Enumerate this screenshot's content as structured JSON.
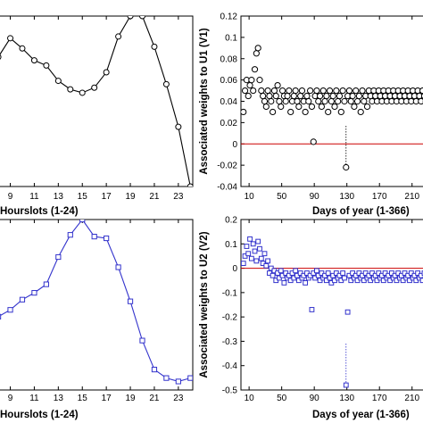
{
  "chart_data": [
    {
      "type": "line",
      "panel": "top-left",
      "xlabel": "Hourslots (1-24)",
      "ylabel": "",
      "xlim": [
        7.4,
        24.2
      ],
      "ylim": [
        0,
        1
      ],
      "xticks": [
        9,
        11,
        13,
        15,
        17,
        19,
        21,
        23
      ],
      "color": "#000000",
      "marker": "circle",
      "series": [
        {
          "x": [
            8,
            9,
            10,
            11,
            12,
            13,
            14,
            15,
            16,
            17,
            18,
            19,
            20,
            21,
            22,
            23,
            24
          ],
          "y": [
            0.76,
            0.87,
            0.81,
            0.74,
            0.71,
            0.62,
            0.57,
            0.55,
            0.58,
            0.67,
            0.88,
            1.0,
            1.0,
            0.82,
            0.6,
            0.35,
            0.0
          ]
        }
      ]
    },
    {
      "type": "scatter",
      "panel": "top-right",
      "xlabel": "Days of year (1-366)",
      "ylabel": "Associated weights to U1 (V1)",
      "xlim": [
        0,
        230
      ],
      "ylim": [
        -0.04,
        0.12
      ],
      "yticks": [
        -0.04,
        -0.02,
        0,
        0.02,
        0.04,
        0.06,
        0.08,
        0.1,
        0.12
      ],
      "ytick_labels": [
        "-0.04",
        "-0.02",
        "0",
        "0.02",
        "0.04",
        "0.06",
        "0.08",
        "0.1",
        "0.12"
      ],
      "xticks": [
        10,
        50,
        90,
        130,
        170,
        210
      ],
      "xtick_labels": [
        "10",
        "50",
        "90",
        "130",
        "170",
        "210"
      ],
      "color": "#000000",
      "marker": "circle",
      "reference_line": {
        "y": 0,
        "color": "#cc0000"
      },
      "series": [
        {
          "x": [
            3,
            5,
            7,
            9,
            11,
            13,
            15,
            17,
            19,
            21,
            23,
            25,
            27,
            29,
            31,
            33,
            35,
            37,
            39,
            41,
            43,
            45,
            47,
            49,
            51,
            53,
            55,
            57,
            59,
            61,
            63,
            65,
            67,
            69,
            71,
            73,
            75,
            77,
            79,
            81,
            83,
            85,
            87,
            89,
            91,
            93,
            95,
            97,
            99,
            101,
            103,
            105,
            107,
            109,
            111,
            113,
            115,
            117,
            119,
            121,
            123,
            125,
            127,
            129,
            131,
            133,
            135,
            137,
            139,
            141,
            143,
            145,
            147,
            149,
            151,
            153,
            155,
            157,
            159,
            161,
            163,
            165,
            167,
            169,
            171,
            173,
            175,
            177,
            179,
            181,
            183,
            185,
            187,
            189,
            191,
            193,
            195,
            197,
            199,
            201,
            203,
            205,
            207,
            209,
            211,
            213,
            215,
            217,
            219,
            221,
            223,
            225,
            227,
            229
          ],
          "y": [
            0.03,
            0.05,
            0.06,
            0.045,
            0.055,
            0.06,
            0.05,
            0.07,
            0.085,
            0.09,
            0.06,
            0.05,
            0.045,
            0.04,
            0.035,
            0.05,
            0.045,
            0.04,
            0.03,
            0.05,
            0.045,
            0.055,
            0.04,
            0.035,
            0.05,
            0.045,
            0.04,
            0.045,
            0.05,
            0.03,
            0.04,
            0.045,
            0.05,
            0.04,
            0.035,
            0.045,
            0.05,
            0.04,
            0.03,
            0.045,
            0.04,
            0.05,
            0.035,
            0.002,
            0.045,
            0.05,
            0.04,
            0.045,
            0.035,
            0.05,
            0.04,
            0.045,
            0.03,
            0.05,
            0.04,
            0.045,
            0.035,
            0.05,
            0.04,
            0.045,
            0.03,
            0.05,
            0.04,
            -0.022,
            0.045,
            0.05,
            0.04,
            0.045,
            0.035,
            0.05,
            0.04,
            0.045,
            0.03,
            0.05,
            0.04,
            0.045,
            0.035,
            0.05,
            0.045,
            0.04,
            0.05,
            0.045,
            0.04,
            0.05,
            0.045,
            0.04,
            0.05,
            0.045,
            0.04,
            0.05,
            0.045,
            0.04,
            0.05,
            0.045,
            0.04,
            0.05,
            0.045,
            0.04,
            0.05,
            0.045,
            0.04,
            0.05,
            0.045,
            0.04,
            0.05,
            0.045,
            0.04,
            0.05,
            0.045,
            0.04,
            0.05,
            0.045,
            0.04,
            0.05
          ]
        }
      ]
    },
    {
      "type": "line",
      "panel": "bottom-left",
      "xlabel": "Hourslots (1-24)",
      "ylabel": "",
      "xlim": [
        7.4,
        24.2
      ],
      "ylim": [
        0,
        1
      ],
      "xticks": [
        9,
        11,
        13,
        15,
        17,
        19,
        21,
        23
      ],
      "color": "#3333cc",
      "marker": "square",
      "series": [
        {
          "x": [
            8,
            9,
            10,
            11,
            12,
            13,
            14,
            15,
            16,
            17,
            18,
            19,
            20,
            21,
            22,
            23,
            24
          ],
          "y": [
            0.43,
            0.47,
            0.53,
            0.57,
            0.62,
            0.78,
            0.91,
            1.0,
            0.9,
            0.89,
            0.72,
            0.52,
            0.29,
            0.12,
            0.07,
            0.05,
            0.07
          ]
        }
      ]
    },
    {
      "type": "scatter",
      "panel": "bottom-right",
      "xlabel": "Days of year (1-366)",
      "ylabel": "Associated weights to U2 (V2)",
      "xlim": [
        0,
        230
      ],
      "ylim": [
        -0.5,
        0.2
      ],
      "yticks": [
        -0.5,
        -0.4,
        -0.3,
        -0.2,
        -0.1,
        0,
        0.1,
        0.2
      ],
      "ytick_labels": [
        "-0.5",
        "-0.4",
        "-0.3",
        "-0.2",
        "-0.1",
        "0",
        "0.1",
        "0.2"
      ],
      "xticks": [
        10,
        50,
        90,
        130,
        170,
        210
      ],
      "xtick_labels": [
        "10",
        "50",
        "90",
        "130",
        "170",
        "210"
      ],
      "color": "#3333cc",
      "marker": "square",
      "reference_line": {
        "y": 0,
        "color": "#cc0000"
      },
      "series": [
        {
          "x": [
            3,
            5,
            7,
            9,
            11,
            13,
            15,
            17,
            19,
            21,
            23,
            25,
            27,
            29,
            31,
            33,
            35,
            37,
            39,
            41,
            43,
            45,
            47,
            49,
            51,
            53,
            55,
            57,
            59,
            61,
            63,
            65,
            67,
            69,
            71,
            73,
            75,
            77,
            79,
            81,
            83,
            85,
            87,
            89,
            91,
            93,
            95,
            97,
            99,
            101,
            103,
            105,
            107,
            109,
            111,
            113,
            115,
            117,
            119,
            121,
            123,
            125,
            127,
            129,
            131,
            133,
            135,
            137,
            139,
            141,
            143,
            145,
            147,
            149,
            151,
            153,
            155,
            157,
            159,
            161,
            163,
            165,
            167,
            169,
            171,
            173,
            175,
            177,
            179,
            181,
            183,
            185,
            187,
            189,
            191,
            193,
            195,
            197,
            199,
            201,
            203,
            205,
            207,
            209,
            211,
            213,
            215,
            217,
            219,
            221,
            223,
            225,
            227,
            229
          ],
          "y": [
            0.02,
            0.05,
            0.09,
            0.06,
            0.12,
            0.04,
            0.1,
            0.07,
            0.03,
            0.11,
            0.08,
            0.04,
            0.02,
            0.06,
            0.01,
            0.03,
            -0.02,
            0.0,
            -0.03,
            -0.01,
            -0.05,
            -0.02,
            -0.04,
            -0.01,
            -0.03,
            -0.06,
            -0.02,
            -0.04,
            -0.03,
            -0.05,
            -0.02,
            -0.04,
            -0.01,
            -0.03,
            -0.05,
            -0.02,
            -0.04,
            -0.03,
            -0.06,
            -0.02,
            -0.04,
            -0.03,
            -0.17,
            -0.02,
            -0.04,
            -0.01,
            -0.03,
            -0.05,
            -0.02,
            -0.04,
            -0.03,
            -0.05,
            -0.02,
            -0.04,
            -0.06,
            -0.03,
            -0.05,
            -0.02,
            -0.04,
            -0.03,
            -0.05,
            -0.02,
            -0.04,
            -0.48,
            -0.18,
            -0.03,
            -0.05,
            -0.02,
            -0.04,
            -0.03,
            -0.05,
            -0.02,
            -0.04,
            -0.03,
            -0.05,
            -0.02,
            -0.04,
            -0.03,
            -0.05,
            -0.02,
            -0.04,
            -0.03,
            -0.05,
            -0.02,
            -0.04,
            -0.03,
            -0.05,
            -0.02,
            -0.04,
            -0.03,
            -0.05,
            -0.02,
            -0.04,
            -0.03,
            -0.05,
            -0.02,
            -0.04,
            -0.03,
            -0.05,
            -0.02,
            -0.04,
            -0.03,
            -0.05,
            -0.02,
            -0.04,
            -0.03,
            -0.05,
            -0.02,
            -0.04,
            -0.03,
            -0.05,
            -0.02,
            -0.04,
            -0.03
          ]
        }
      ]
    }
  ]
}
